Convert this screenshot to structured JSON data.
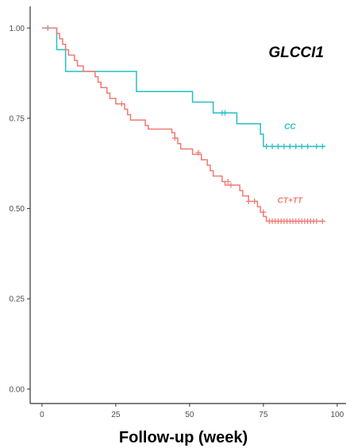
{
  "chart_data": {
    "type": "line",
    "subtype": "kaplan-meier-step",
    "title": "GLCCI1",
    "xlabel": "Follow-up (week)",
    "ylabel": "",
    "xlim": [
      -4,
      103
    ],
    "ylim": [
      -0.04,
      1.06
    ],
    "x_ticks": [
      0,
      25,
      50,
      75,
      100
    ],
    "y_ticks": [
      0.0,
      0.25,
      0.5,
      0.75,
      1.0
    ],
    "x_tick_labels": [
      "0",
      "25",
      "50",
      "75",
      "100"
    ],
    "y_tick_labels": [
      "0.00",
      "0.25",
      "0.50",
      "0.75",
      "1.00"
    ],
    "grid": false,
    "legend": "none (inline labels)",
    "series": [
      {
        "name": "CC",
        "color": "#25bfc3",
        "label_at": [
          84,
          0.72
        ],
        "steps": [
          [
            0,
            1.0
          ],
          [
            5,
            0.94
          ],
          [
            8,
            0.88
          ],
          [
            32,
            0.824
          ],
          [
            51,
            0.795
          ],
          [
            58,
            0.765
          ],
          [
            66,
            0.735
          ],
          [
            74,
            0.706
          ],
          [
            75,
            0.672
          ],
          [
            96,
            0.672
          ]
        ],
        "censored": [
          [
            2,
            1.0
          ],
          [
            61,
            0.765
          ],
          [
            62,
            0.765
          ],
          [
            76,
            0.672
          ],
          [
            78,
            0.672
          ],
          [
            80,
            0.672
          ],
          [
            82,
            0.672
          ],
          [
            84,
            0.672
          ],
          [
            86,
            0.672
          ],
          [
            88,
            0.672
          ],
          [
            90,
            0.672
          ],
          [
            93,
            0.672
          ],
          [
            95,
            0.672
          ]
        ]
      },
      {
        "name": "CT+TT",
        "color": "#f07a72",
        "label_at": [
          84,
          0.515
        ],
        "steps": [
          [
            0,
            1.0
          ],
          [
            5,
            0.985
          ],
          [
            6,
            0.97
          ],
          [
            7,
            0.955
          ],
          [
            8,
            0.94
          ],
          [
            9,
            0.925
          ],
          [
            11,
            0.91
          ],
          [
            12,
            0.895
          ],
          [
            14,
            0.88
          ],
          [
            18,
            0.865
          ],
          [
            19,
            0.85
          ],
          [
            20,
            0.835
          ],
          [
            22,
            0.82
          ],
          [
            23,
            0.805
          ],
          [
            25,
            0.79
          ],
          [
            28,
            0.775
          ],
          [
            29,
            0.76
          ],
          [
            30,
            0.745
          ],
          [
            35,
            0.73
          ],
          [
            36,
            0.72
          ],
          [
            44,
            0.71
          ],
          [
            45,
            0.695
          ],
          [
            46,
            0.68
          ],
          [
            47,
            0.665
          ],
          [
            51,
            0.65
          ],
          [
            54,
            0.635
          ],
          [
            56,
            0.62
          ],
          [
            57,
            0.605
          ],
          [
            58,
            0.59
          ],
          [
            61,
            0.575
          ],
          [
            62,
            0.565
          ],
          [
            67,
            0.55
          ],
          [
            68,
            0.535
          ],
          [
            70,
            0.52
          ],
          [
            73,
            0.505
          ],
          [
            74,
            0.49
          ],
          [
            75,
            0.478
          ],
          [
            76,
            0.465
          ],
          [
            96,
            0.465
          ]
        ],
        "censored": [
          [
            27,
            0.79
          ],
          [
            45,
            0.695
          ],
          [
            53,
            0.655
          ],
          [
            63,
            0.575
          ],
          [
            64,
            0.565
          ],
          [
            70,
            0.52
          ],
          [
            72,
            0.52
          ],
          [
            75,
            0.49
          ],
          [
            77,
            0.465
          ],
          [
            78,
            0.465
          ],
          [
            79,
            0.465
          ],
          [
            80,
            0.465
          ],
          [
            81,
            0.465
          ],
          [
            82,
            0.465
          ],
          [
            83,
            0.465
          ],
          [
            84,
            0.465
          ],
          [
            85,
            0.465
          ],
          [
            86,
            0.465
          ],
          [
            87,
            0.465
          ],
          [
            88,
            0.465
          ],
          [
            89,
            0.465
          ],
          [
            90,
            0.465
          ],
          [
            91,
            0.465
          ],
          [
            92,
            0.465
          ],
          [
            93,
            0.465
          ],
          [
            95,
            0.465
          ]
        ]
      }
    ]
  }
}
